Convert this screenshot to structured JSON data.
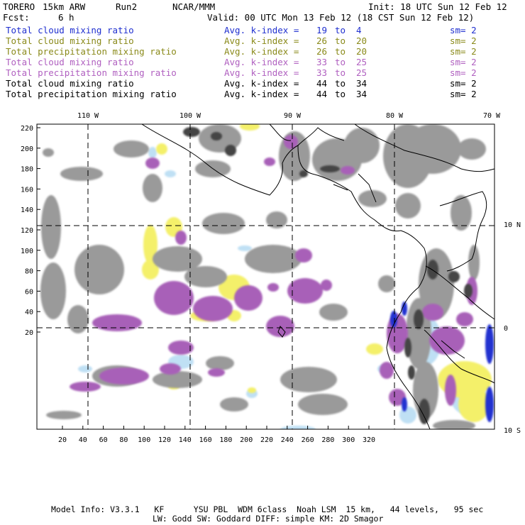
{
  "header": {
    "model": "TORERO",
    "resolution": "15km ARW",
    "run": "Run2",
    "org": "NCAR/MMM",
    "init": "Init: 18 UTC Sun 12 Feb 12",
    "fcst_label": "Fcst:",
    "fcst_value": "6 h",
    "valid": "Valid: 00 UTC Mon 13 Feb 12 (18 CST Sun 12 Feb 12)"
  },
  "legend_rows": [
    {
      "field": "Total cloud mixing ratio",
      "kindex": "Avg. k-index =",
      "from": "19",
      "to_word": "to",
      "to": "4",
      "sm": "sm= 2",
      "color": "#1f2fcf"
    },
    {
      "field": "Total cloud mixing ratio",
      "kindex": "Avg. k-index =",
      "from": "26",
      "to_word": "to",
      "to": "20",
      "sm": "sm= 2",
      "color": "#8a8a1a"
    },
    {
      "field": "Total precipitation mixing ratio",
      "kindex": "Avg. k-index =",
      "from": "26",
      "to_word": "to",
      "to": "20",
      "sm": "sm= 2",
      "color": "#8a8a1a"
    },
    {
      "field": "Total cloud mixing ratio",
      "kindex": "Avg. k-index =",
      "from": "33",
      "to_word": "to",
      "to": "25",
      "sm": "sm= 2",
      "color": "#b060c0"
    },
    {
      "field": "Total precipitation mixing ratio",
      "kindex": "Avg. k-index =",
      "from": "33",
      "to_word": "to",
      "to": "25",
      "sm": "sm= 2",
      "color": "#b060c0"
    },
    {
      "field": "Total cloud mixing ratio",
      "kindex": "Avg. k-index =",
      "from": "44",
      "to_word": "to",
      "to": "34",
      "sm": "sm= 2",
      "color": "#000000"
    },
    {
      "field": "Total precipitation mixing ratio",
      "kindex": "Avg. k-index =",
      "from": "44",
      "to_word": "to",
      "to": "34",
      "sm": "sm= 2",
      "color": "#000000"
    }
  ],
  "map": {
    "lon_labels": [
      "110 W",
      "100 W",
      "90 W",
      "80 W",
      "70 W"
    ],
    "lat_labels": [
      "10 N",
      "0",
      "10 S"
    ],
    "x_ticks": [
      "20",
      "40",
      "60",
      "80",
      "100",
      "120",
      "140",
      "160",
      "180",
      "200",
      "220",
      "240",
      "260",
      "280",
      "300",
      "320"
    ],
    "y_ticks": [
      "220",
      "200",
      "180",
      "160",
      "140",
      "120",
      "100",
      "80",
      "60",
      "40",
      "20"
    ],
    "colors": {
      "gray": "#9a9a9a",
      "dark": "#444444",
      "purple": "#a860b8",
      "yellow": "#f4f06a",
      "lightblue": "#bfe0f4",
      "blue": "#2030d0"
    }
  },
  "footer": {
    "line1": "Model Info: V3.3.1   KF      YSU PBL  WDM 6class  Noah LSM  15 km,   44 levels,   95 sec",
    "line2": "LW: Godd SW: Goddard DIFF: simple KM: 2D Smagor"
  }
}
